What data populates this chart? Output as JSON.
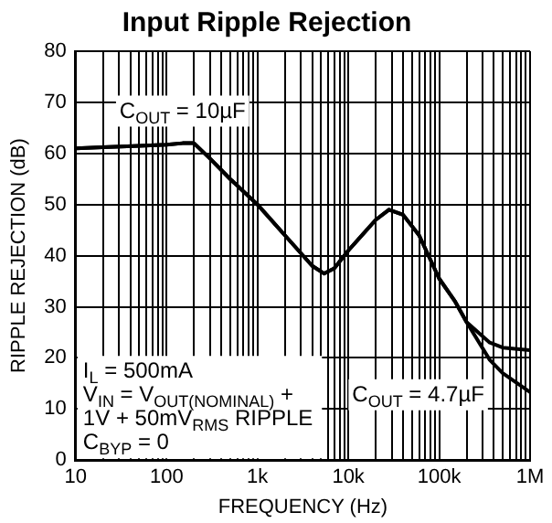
{
  "chart_data": {
    "type": "line",
    "title": "Input Ripple Rejection",
    "xlabel": "FREQUENCY (Hz)",
    "ylabel": "RIPPLE REJECTION (dB)",
    "x": [
      10,
      20,
      50,
      100,
      150,
      200,
      300,
      500,
      1000,
      2000,
      4000,
      5400,
      7000,
      10000,
      20000,
      28000,
      40000,
      60000,
      100000,
      150000,
      200000,
      360000,
      500000,
      1000000
    ],
    "series": [
      {
        "name": "C$_{OUT}$ = 10µF",
        "color": "#000000",
        "values": [
          61,
          61.2,
          61.5,
          61.7,
          62,
          62,
          59,
          55,
          50,
          44,
          38,
          36.5,
          37.5,
          41,
          47,
          49,
          48,
          44,
          35.5,
          31,
          27,
          23,
          22,
          21.5
        ]
      },
      {
        "name": "C$_{OUT}$ = 4.7µF",
        "color": "#000000",
        "values": [
          61,
          61.2,
          61.5,
          61.7,
          62,
          62,
          59,
          55,
          50,
          44,
          38,
          36.5,
          37.5,
          41,
          47,
          49,
          48,
          44,
          35.5,
          31,
          27,
          19.6,
          17,
          13.3
        ]
      }
    ],
    "log": "x",
    "xlim": [
      10,
      1000000
    ],
    "xticks": [
      10,
      {
        "value": 20,
        "label": null
      },
      {
        "value": 30,
        "label": null
      },
      {
        "value": 40,
        "label": null
      },
      {
        "value": 50,
        "label": null
      },
      {
        "value": 60,
        "label": null
      },
      {
        "value": 70,
        "label": null
      },
      {
        "value": 80,
        "label": null
      },
      {
        "value": 90,
        "label": null
      },
      100,
      {
        "value": 200,
        "label": null
      },
      {
        "value": 300,
        "label": null
      },
      {
        "value": 400,
        "label": null
      },
      {
        "value": 500,
        "label": null
      },
      {
        "value": 600,
        "label": null
      },
      {
        "value": 700,
        "label": null
      },
      {
        "value": 800,
        "label": null
      },
      {
        "value": 900,
        "label": null
      },
      {
        "value": 1000,
        "label": "1k"
      },
      {
        "value": 2000,
        "label": null
      },
      {
        "value": 3000,
        "label": null
      },
      {
        "value": 4000,
        "label": null
      },
      {
        "value": 5000,
        "label": null
      },
      {
        "value": 6000,
        "label": null
      },
      {
        "value": 7000,
        "label": null
      },
      {
        "value": 8000,
        "label": null
      },
      {
        "value": 9000,
        "label": null
      },
      {
        "value": 10000,
        "label": "10k"
      },
      {
        "value": 20000,
        "label": null
      },
      {
        "value": 30000,
        "label": null
      },
      {
        "value": 40000,
        "label": null
      },
      {
        "value": 50000,
        "label": null
      },
      {
        "value": 60000,
        "label": null
      },
      {
        "value": 70000,
        "label": null
      },
      {
        "value": 80000,
        "label": null
      },
      {
        "value": 90000,
        "label": null
      },
      {
        "value": 100000,
        "label": "100k"
      },
      {
        "value": 200000,
        "label": null
      },
      {
        "value": 300000,
        "label": null
      },
      {
        "value": 400000,
        "label": null
      },
      {
        "value": 500000,
        "label": null
      },
      {
        "value": 600000,
        "label": null
      },
      {
        "value": 700000,
        "label": null
      },
      {
        "value": 800000,
        "label": null
      },
      {
        "value": 900000,
        "label": null
      },
      {
        "value": 1000000,
        "label": "1M"
      }
    ],
    "ylim": [
      0,
      80
    ],
    "yticks": [
      0,
      10,
      20,
      30,
      40,
      50,
      60,
      70,
      80
    ],
    "grid": true,
    "legend": false,
    "marker": "none",
    "line_style": "solid",
    "annotations": [
      "I$_{L}$ = 500mA",
      "V$_{IN}$ = V$_{OUT(NOMINAL)}$ +",
      "1V + 50mV$_{RMS}$ RIPPLE",
      "C$_{BYP}$ = 0"
    ]
  }
}
